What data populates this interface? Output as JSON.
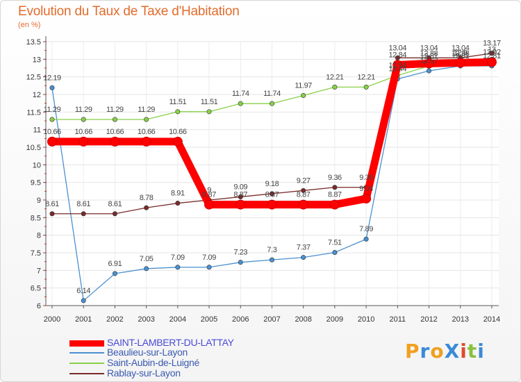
{
  "chart_data": {
    "type": "line",
    "title": "Evolution du Taux de Taxe d'Habitation",
    "ylabel": "(en %)",
    "x": [
      2000,
      2001,
      2002,
      2003,
      2004,
      2005,
      2006,
      2007,
      2008,
      2009,
      2010,
      2011,
      2012,
      2013,
      2014
    ],
    "ylim": [
      6,
      13.5
    ],
    "yticks": [
      "6",
      "6.5",
      "7",
      "7.5",
      "8",
      "8.5",
      "9",
      "9.5",
      "10",
      "10.5",
      "11",
      "11.5",
      "12",
      "12.5",
      "13",
      "13.5"
    ],
    "series": [
      {
        "name": "SAINT-LAMBERT-DU-LATTAY",
        "color": "#ff0000",
        "values": [
          10.66,
          10.66,
          10.66,
          10.66,
          10.66,
          8.87,
          8.87,
          8.87,
          8.87,
          8.87,
          9.04,
          12.84,
          12.88,
          12.9,
          12.92
        ],
        "labels": [
          "10.66",
          "10.66",
          "10.66",
          "10.66",
          "10.66",
          "8.87",
          "8.87",
          "8.87",
          "8.87",
          "8.87",
          "9.04",
          "12.84",
          "12.88",
          "12.9",
          "12.92"
        ]
      },
      {
        "name": "Beaulieu-sur-Layon",
        "color": "#4a90d0",
        "values": [
          12.19,
          6.14,
          6.91,
          7.05,
          7.09,
          7.09,
          7.23,
          7.3,
          7.37,
          7.51,
          7.89,
          12.44,
          12.67,
          12.81,
          12.81
        ],
        "labels": [
          "12.19",
          "6.14",
          "6.91",
          "7.05",
          "7.09",
          "7.09",
          "7.23",
          "7.3",
          "7.37",
          "7.51",
          "7.89",
          "12.44",
          "12.67",
          "12.81",
          "12.81"
        ]
      },
      {
        "name": "Saint-Aubin-de-Luigné",
        "color": "#88d048",
        "values": [
          11.29,
          11.29,
          11.29,
          11.29,
          11.51,
          11.51,
          11.74,
          11.74,
          11.97,
          12.21,
          12.21,
          12.54,
          12.81,
          12.88,
          13.0
        ],
        "labels": [
          "11.29",
          "11.29",
          "11.29",
          "11.29",
          "11.51",
          "11.51",
          "11.74",
          "11.74",
          "11.97",
          "12.21",
          "12.21",
          "12.54",
          "12.81",
          "12.88",
          "13"
        ]
      },
      {
        "name": "Rablay-sur-Layon",
        "color": "#7a2a2a",
        "values": [
          8.61,
          8.61,
          8.61,
          8.78,
          8.91,
          9.0,
          9.09,
          9.18,
          9.27,
          9.36,
          9.36,
          13.04,
          13.04,
          13.04,
          13.17
        ],
        "labels": [
          "8.61",
          "8.61",
          "8.61",
          "8.78",
          "8.91",
          "9",
          "9.09",
          "9.18",
          "9.27",
          "9.36",
          "9.36",
          "13.04",
          "13.04",
          "13.04",
          "13.17"
        ]
      }
    ]
  },
  "logo": {
    "text": "ProXiti"
  }
}
